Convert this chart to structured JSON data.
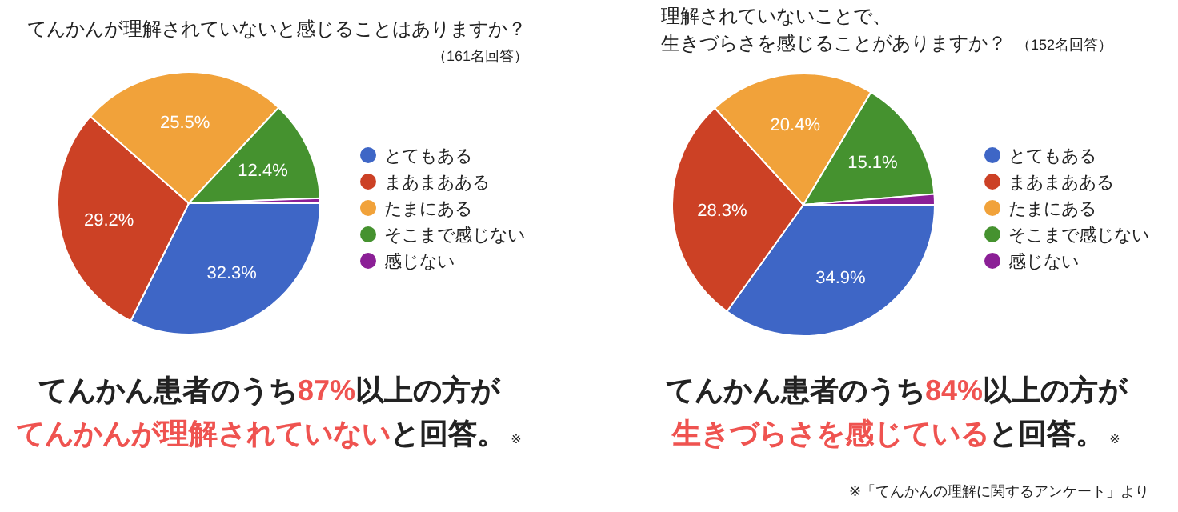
{
  "chart_data": [
    {
      "type": "pie",
      "title": "てんかんが理解されていないと感じることはありますか？",
      "subtitle": "（161名回答）",
      "categories": [
        "とてもある",
        "まあまあある",
        "たまにある",
        "そこまで感じない",
        "感じない"
      ],
      "values": [
        32.3,
        29.2,
        25.5,
        12.4,
        0.6
      ],
      "colors": [
        "#3e66c6",
        "#cc4125",
        "#f1a23a",
        "#45922f",
        "#8b1f96"
      ],
      "value_labels": [
        "32.3%",
        "29.2%",
        "25.5%",
        "12.4%",
        null
      ],
      "legend": "right",
      "annotations": [
        "てんかん患者のうち",
        "87%",
        "以上の方が",
        "てんかんが理解されていない",
        "と回答。",
        "※"
      ]
    },
    {
      "type": "pie",
      "title": "理解されていないことで、生きづらさを感じることがありますか？",
      "subtitle": "（152名回答）",
      "categories": [
        "とてもある",
        "まあまあある",
        "たまにある",
        "そこまで感じない",
        "感じない"
      ],
      "values": [
        34.9,
        28.3,
        20.4,
        15.1,
        1.3
      ],
      "colors": [
        "#3e66c6",
        "#cc4125",
        "#f1a23a",
        "#45922f",
        "#8b1f96"
      ],
      "value_labels": [
        "34.9%",
        "28.3%",
        "20.4%",
        "15.1%",
        null
      ],
      "legend": "right",
      "annotations": [
        "てんかん患者のうち",
        "84%",
        "以上の方が",
        "生きづらさを感じている",
        "と回答。",
        "※",
        "※「てんかんの理解に関するアンケート」より"
      ]
    }
  ]
}
